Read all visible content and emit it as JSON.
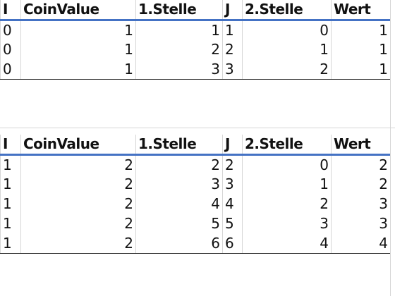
{
  "table1": {
    "headers": [
      "I",
      "CoinValue",
      "1.Stelle",
      "J",
      "2.Stelle",
      "Wert"
    ],
    "rows": [
      [
        "0",
        "1",
        "1",
        "1",
        "0",
        "1"
      ],
      [
        "0",
        "1",
        "2",
        "2",
        "1",
        "1"
      ],
      [
        "0",
        "1",
        "3",
        "3",
        "2",
        "1"
      ]
    ]
  },
  "table2": {
    "headers": [
      "I",
      "CoinValue",
      "1.Stelle",
      "J",
      "2.Stelle",
      "Wert"
    ],
    "rows": [
      [
        "1",
        "2",
        "2",
        "2",
        "0",
        "2"
      ],
      [
        "1",
        "2",
        "3",
        "3",
        "1",
        "2"
      ],
      [
        "1",
        "2",
        "4",
        "4",
        "2",
        "3"
      ],
      [
        "1",
        "2",
        "5",
        "5",
        "3",
        "3"
      ],
      [
        "1",
        "2",
        "6",
        "6",
        "4",
        "4"
      ]
    ]
  },
  "colors": {
    "header_text": "#44546a",
    "header_rule": "#4472c4",
    "gridline": "#d6d6d6"
  }
}
